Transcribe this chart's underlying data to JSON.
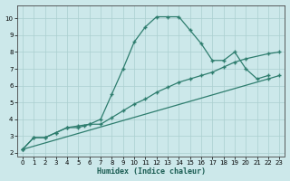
{
  "xlabel": "Humidex (Indice chaleur)",
  "bg_color": "#cce8ea",
  "line_color": "#2e7d6e",
  "grid_color": "#aacfcf",
  "xlim": [
    -0.5,
    23.5
  ],
  "ylim": [
    1.8,
    10.8
  ],
  "xticks": [
    0,
    1,
    2,
    3,
    4,
    5,
    6,
    7,
    8,
    9,
    10,
    11,
    12,
    13,
    14,
    15,
    16,
    17,
    18,
    19,
    20,
    21,
    22,
    23
  ],
  "yticks": [
    2,
    3,
    4,
    5,
    6,
    7,
    8,
    9,
    10
  ],
  "line1_x": [
    0,
    1,
    2,
    3,
    4,
    5,
    5.5,
    6,
    7,
    8,
    9,
    10,
    11,
    12,
    13,
    14,
    15,
    16,
    17,
    18,
    19,
    20,
    21,
    22
  ],
  "line1_y": [
    2.2,
    2.9,
    2.9,
    3.2,
    3.5,
    3.5,
    3.6,
    3.7,
    4.0,
    5.5,
    7.0,
    8.6,
    9.5,
    10.1,
    10.1,
    10.1,
    9.3,
    8.5,
    7.5,
    7.5,
    8.0,
    7.0,
    6.4,
    6.6
  ],
  "line2_x": [
    0,
    1,
    2,
    3,
    4,
    5,
    6,
    7,
    8,
    9,
    10,
    11,
    12,
    13,
    14,
    15,
    16,
    17,
    18,
    19,
    20,
    22,
    23
  ],
  "line2_y": [
    2.2,
    2.9,
    2.9,
    3.2,
    3.5,
    3.6,
    3.7,
    3.7,
    4.1,
    4.5,
    4.9,
    5.2,
    5.6,
    5.9,
    6.2,
    6.4,
    6.6,
    6.8,
    7.1,
    7.4,
    7.6,
    7.9,
    8.0
  ],
  "line3_x": [
    0,
    22,
    23
  ],
  "line3_y": [
    2.2,
    6.4,
    6.6
  ]
}
